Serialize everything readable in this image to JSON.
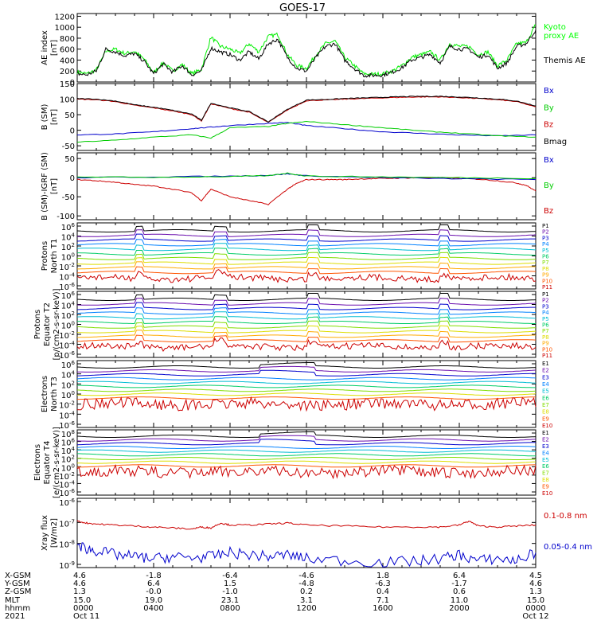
{
  "title": "GOES-17",
  "chart_data": [
    {
      "type": "line",
      "panel": "ae",
      "ylabel": [
        "AE index",
        "[nT]"
      ],
      "yticks": [
        "1200",
        "1000",
        "800",
        "600",
        "400",
        "200",
        "0"
      ],
      "ylim": [
        0,
        1250
      ],
      "legend": [
        {
          "text": "Kyoto",
          "color": "#00ff00"
        },
        {
          "text": "proxy AE",
          "color": "#00ff00"
        },
        {
          "text": "Themis AE",
          "color": "#000000"
        }
      ],
      "series": [
        {
          "name": "Kyoto proxy AE",
          "color": "#00ee00",
          "x": [
            0,
            0.5,
            1,
            1.5,
            2,
            2.5,
            3,
            3.5,
            4,
            4.5,
            5,
            5.5,
            6,
            6.5,
            7,
            7.5,
            8,
            8.5,
            9,
            9.5,
            10,
            10.5,
            11,
            11.5,
            12,
            12.5,
            13,
            13.5,
            14,
            14.5,
            15,
            15.5,
            16,
            16.5,
            17,
            17.5,
            18,
            18.5,
            19,
            19.5,
            20,
            20.5,
            21,
            21.5,
            22,
            22.5,
            23,
            23.5,
            24
          ],
          "values": [
            180,
            150,
            220,
            560,
            600,
            520,
            560,
            420,
            170,
            350,
            200,
            320,
            150,
            230,
            820,
            650,
            600,
            520,
            700,
            550,
            830,
            870,
            500,
            300,
            250,
            500,
            700,
            750,
            450,
            300,
            150,
            140,
            150,
            200,
            300,
            450,
            500,
            550,
            400,
            700,
            650,
            650,
            500,
            550,
            300,
            400,
            700,
            720,
            1050
          ]
        },
        {
          "name": "Themis AE",
          "color": "#000000",
          "x": [
            0,
            0.5,
            1,
            1.5,
            2,
            2.5,
            3,
            3.5,
            4,
            4.5,
            5,
            5.5,
            6,
            6.5,
            7,
            7.5,
            8,
            8.5,
            9,
            9.5,
            10,
            10.5,
            11,
            11.5,
            12,
            12.5,
            13,
            13.5,
            14,
            14.5,
            15,
            15.5,
            16,
            16.5,
            17,
            17.5,
            18,
            18.5,
            19,
            19.5,
            20,
            20.5,
            21,
            21.5,
            22,
            22.5,
            23,
            23.5,
            24
          ],
          "values": [
            150,
            130,
            200,
            600,
            550,
            480,
            520,
            380,
            150,
            330,
            180,
            300,
            130,
            200,
            620,
            550,
            500,
            400,
            550,
            420,
            700,
            780,
            450,
            250,
            200,
            450,
            650,
            700,
            400,
            250,
            120,
            120,
            130,
            180,
            260,
            400,
            450,
            500,
            350,
            650,
            600,
            600,
            450,
            500,
            250,
            350,
            650,
            700,
            950
          ]
        }
      ]
    },
    {
      "type": "line",
      "panel": "b",
      "ylabel": [
        "B (SM)",
        "[nT]"
      ],
      "yticks": [
        "150",
        "100",
        "50",
        "0",
        "-50"
      ],
      "ylim": [
        -65,
        150
      ],
      "legend": [
        {
          "text": "Bx",
          "color": "#0000cc"
        },
        {
          "text": "By",
          "color": "#00cc00"
        },
        {
          "text": "Bz",
          "color": "#cc0000"
        },
        {
          "text": "Bmag",
          "color": "#000000"
        }
      ],
      "series": [
        {
          "name": "Bz",
          "color": "#cc0000",
          "x": [
            0,
            1,
            2,
            3,
            4,
            5,
            6,
            6.5,
            7,
            8,
            9,
            10,
            11,
            12,
            13,
            14,
            15,
            16,
            17,
            18,
            19,
            20,
            21,
            22,
            23,
            24
          ],
          "values": [
            100,
            98,
            92,
            80,
            72,
            62,
            50,
            30,
            85,
            70,
            58,
            25,
            65,
            95,
            97,
            100,
            102,
            104,
            106,
            107,
            107,
            105,
            102,
            98,
            92,
            75
          ]
        },
        {
          "name": "Bmag",
          "color": "#000000",
          "x": [
            0,
            1,
            2,
            3,
            4,
            5,
            6,
            6.5,
            7,
            8,
            9,
            10,
            11,
            12,
            13,
            14,
            15,
            16,
            17,
            18,
            19,
            20,
            21,
            22,
            23,
            24
          ],
          "values": [
            102,
            100,
            94,
            82,
            74,
            64,
            52,
            32,
            87,
            72,
            60,
            27,
            67,
            97,
            99,
            102,
            104,
            106,
            108,
            109,
            109,
            107,
            104,
            100,
            94,
            78
          ]
        },
        {
          "name": "Bx",
          "color": "#0000cc",
          "x": [
            0,
            2,
            4,
            6,
            7,
            8,
            10,
            11,
            12,
            14,
            16,
            18,
            20,
            22,
            24
          ],
          "values": [
            -15,
            -12,
            -5,
            5,
            10,
            15,
            22,
            25,
            15,
            5,
            -5,
            -10,
            -15,
            -18,
            -15
          ]
        },
        {
          "name": "By",
          "color": "#00cc00",
          "x": [
            0,
            2,
            4,
            6,
            7,
            8,
            10,
            11,
            12,
            14,
            16,
            18,
            20,
            22,
            24
          ],
          "values": [
            -38,
            -32,
            -22,
            -15,
            -25,
            8,
            12,
            22,
            28,
            18,
            8,
            -2,
            -10,
            -18,
            -22
          ]
        }
      ]
    },
    {
      "type": "line",
      "panel": "db",
      "ylabel": [
        "B (SM)-IGRF (SM)",
        "[nT]"
      ],
      "yticks": [
        "50",
        "0",
        "-50",
        "-100"
      ],
      "ylim": [
        -110,
        65
      ],
      "legend": [
        {
          "text": "Bx",
          "color": "#0000cc"
        },
        {
          "text": "By",
          "color": "#00cc00"
        },
        {
          "text": "Bz",
          "color": "#cc0000"
        }
      ],
      "series": [
        {
          "name": "Bz",
          "color": "#cc0000",
          "x": [
            0,
            1,
            2,
            3,
            4,
            5,
            6,
            6.5,
            7,
            8,
            9,
            10,
            11,
            11.5,
            12,
            13,
            14,
            15,
            16,
            17,
            18,
            19,
            20,
            21,
            22,
            23,
            23.5,
            24
          ],
          "values": [
            -5,
            -8,
            -12,
            -18,
            -22,
            -30,
            -40,
            -60,
            -30,
            -50,
            -60,
            -70,
            -30,
            -15,
            -5,
            -5,
            -5,
            -3,
            -2,
            -1,
            0,
            0,
            -2,
            -4,
            -8,
            -14,
            -20,
            -35
          ]
        },
        {
          "name": "Bx",
          "color": "#0000cc",
          "x": [
            0,
            4,
            8,
            10,
            11,
            12,
            16,
            20,
            24
          ],
          "values": [
            0,
            2,
            4,
            6,
            10,
            5,
            0,
            -3,
            -5
          ]
        },
        {
          "name": "By",
          "color": "#00cc00",
          "x": [
            0,
            4,
            8,
            10,
            11,
            12,
            16,
            20,
            24
          ],
          "values": [
            2,
            1,
            3,
            5,
            12,
            4,
            2,
            0,
            -2
          ]
        }
      ]
    },
    {
      "type": "line",
      "panel": "protons-t1",
      "ylabel": [
        "Protons",
        "North T1"
      ],
      "ylog": true,
      "yticks": [
        {
          "b": "10",
          "e": "6"
        },
        {
          "b": "10",
          "e": "4"
        },
        {
          "b": "10",
          "e": "2"
        },
        {
          "b": "10",
          "e": "0"
        },
        {
          "b": "10",
          "e": "-2"
        },
        {
          "b": "10",
          "e": "-4"
        },
        {
          "b": "10",
          "e": "-6"
        }
      ],
      "legend": [
        {
          "text": "P1",
          "color": "#000000"
        },
        {
          "text": "P2",
          "color": "#6a0dad"
        },
        {
          "text": "P3",
          "color": "#0000cc"
        },
        {
          "text": "P4",
          "color": "#0080ff"
        },
        {
          "text": "P5",
          "color": "#00bcd4"
        },
        {
          "text": "P6",
          "color": "#00cc66"
        },
        {
          "text": "P7",
          "color": "#80dd00"
        },
        {
          "text": "P8",
          "color": "#dddd00"
        },
        {
          "text": "P9",
          "color": "#ffaa00"
        },
        {
          "text": "P10",
          "color": "#ff5500"
        },
        {
          "text": "P11",
          "color": "#cc0000"
        }
      ]
    },
    {
      "type": "line",
      "panel": "protons-t2",
      "ylabel": [
        "Protons",
        "Equator T2",
        "[p/(cm2-s-sr-keV)]"
      ],
      "ylog": true,
      "yticks": [
        {
          "b": "10",
          "e": "6"
        },
        {
          "b": "10",
          "e": "4"
        },
        {
          "b": "10",
          "e": "2"
        },
        {
          "b": "10",
          "e": "0"
        },
        {
          "b": "10",
          "e": "-2"
        },
        {
          "b": "10",
          "e": "-4"
        },
        {
          "b": "10",
          "e": "-6"
        }
      ],
      "legend": [
        {
          "text": "P1",
          "color": "#000000"
        },
        {
          "text": "P2",
          "color": "#6a0dad"
        },
        {
          "text": "P3",
          "color": "#0000cc"
        },
        {
          "text": "P4",
          "color": "#0080ff"
        },
        {
          "text": "P5",
          "color": "#00bcd4"
        },
        {
          "text": "P6",
          "color": "#00cc66"
        },
        {
          "text": "P7",
          "color": "#80dd00"
        },
        {
          "text": "P8",
          "color": "#dddd00"
        },
        {
          "text": "P9",
          "color": "#ffaa00"
        },
        {
          "text": "P10",
          "color": "#ff5500"
        },
        {
          "text": "P11",
          "color": "#cc0000"
        }
      ]
    },
    {
      "type": "line",
      "panel": "electrons-t3",
      "ylabel": [
        "Electrons",
        "North T3"
      ],
      "ylog": true,
      "yticks": [
        {
          "b": "10",
          "e": "6"
        },
        {
          "b": "10",
          "e": "4"
        },
        {
          "b": "10",
          "e": "2"
        },
        {
          "b": "10",
          "e": "0"
        },
        {
          "b": "10",
          "e": "-2"
        },
        {
          "b": "10",
          "e": "-4"
        },
        {
          "b": "10",
          "e": "-6"
        }
      ],
      "legend": [
        {
          "text": "E1",
          "color": "#000000"
        },
        {
          "text": "E2",
          "color": "#6a0dad"
        },
        {
          "text": "E3",
          "color": "#0000cc"
        },
        {
          "text": "E4",
          "color": "#0080ff"
        },
        {
          "text": "E5",
          "color": "#00bcd4"
        },
        {
          "text": "E6",
          "color": "#00cc66"
        },
        {
          "text": "E7",
          "color": "#80dd00"
        },
        {
          "text": "E8",
          "color": "#dddd00"
        },
        {
          "text": "E9",
          "color": "#ff5500"
        },
        {
          "text": "E10",
          "color": "#cc0000"
        }
      ]
    },
    {
      "type": "line",
      "panel": "electrons-t4",
      "ylabel": [
        "Electrons",
        "Equator T4",
        "[e/(cm2-s-sr-keV)]"
      ],
      "ylog": true,
      "yticks": [
        {
          "b": "10",
          "e": "8"
        },
        {
          "b": "10",
          "e": "6"
        },
        {
          "b": "10",
          "e": "4"
        },
        {
          "b": "10",
          "e": "2"
        },
        {
          "b": "10",
          "e": "0"
        },
        {
          "b": "10",
          "e": "-2"
        },
        {
          "b": "10",
          "e": "-4"
        },
        {
          "b": "10",
          "e": "-6"
        }
      ],
      "legend": [
        {
          "text": "E1",
          "color": "#000000"
        },
        {
          "text": "E2",
          "color": "#6a0dad"
        },
        {
          "text": "E3",
          "color": "#0000cc"
        },
        {
          "text": "E4",
          "color": "#0080ff"
        },
        {
          "text": "E5",
          "color": "#00bcd4"
        },
        {
          "text": "E6",
          "color": "#00cc66"
        },
        {
          "text": "E7",
          "color": "#80dd00"
        },
        {
          "text": "E8",
          "color": "#dddd00"
        },
        {
          "text": "E9",
          "color": "#ff5500"
        },
        {
          "text": "E10",
          "color": "#cc0000"
        }
      ]
    },
    {
      "type": "line",
      "panel": "xray",
      "ylabel": [
        "Xray flux",
        "[W/m2]"
      ],
      "ylog": true,
      "yticks": [
        {
          "b": "10",
          "e": "-6"
        },
        {
          "b": "10",
          "e": "-7"
        },
        {
          "b": "10",
          "e": "-8"
        },
        {
          "b": "10",
          "e": "-9"
        }
      ],
      "legend": [
        {
          "text": "0.1-0.8 nm",
          "color": "#cc0000"
        },
        {
          "text": "0.05-0.4 nm",
          "color": "#0000cc"
        }
      ],
      "series": [
        {
          "name": "0.1-0.8 nm",
          "color": "#cc0000",
          "x": [
            0,
            0.5,
            1,
            2,
            3,
            4,
            5,
            6,
            6.5,
            7,
            7.5,
            8,
            9,
            10,
            11,
            12,
            14,
            16,
            18,
            19,
            20,
            20.5,
            21,
            22,
            23,
            24
          ],
          "values": [
            -6.9,
            -7.0,
            -7.05,
            -7.1,
            -7.15,
            -7.2,
            -7.25,
            -7.3,
            -7.2,
            -7.25,
            -7.0,
            -7.1,
            -7.1,
            -7.05,
            -7.0,
            -7.1,
            -7.15,
            -7.2,
            -7.2,
            -7.2,
            -7.1,
            -6.9,
            -7.15,
            -7.2,
            -7.15,
            -7.1
          ]
        },
        {
          "name": "0.05-0.4 nm",
          "color": "#0000cc",
          "x": [
            0,
            0.5,
            1,
            2,
            3,
            4,
            5,
            6,
            7,
            8,
            9,
            10,
            11,
            12,
            14,
            16,
            18,
            19,
            20,
            21,
            22,
            23,
            24
          ],
          "values": [
            -8.1,
            -8.3,
            -8.4,
            -8.6,
            -8.7,
            -8.8,
            -8.7,
            -8.75,
            -8.7,
            -8.5,
            -8.6,
            -8.7,
            -8.6,
            -8.8,
            -8.9,
            -9.0,
            -8.9,
            -8.8,
            -8.6,
            -8.9,
            -8.8,
            -8.9,
            -8.5
          ]
        }
      ]
    }
  ],
  "ephemeris": {
    "row_labels": [
      "X-GSM",
      "Y-GSM",
      "Z-GSM",
      "MLT",
      "hhmm",
      "2021"
    ],
    "columns": [
      [
        "4.6",
        "4.6",
        "1.3",
        "15.0",
        "0000",
        "Oct 11"
      ],
      [
        "-1.8",
        "6.4",
        "-0.0",
        "19.0",
        "0400",
        ""
      ],
      [
        "-6.4",
        "1.5",
        "-1.0",
        "23.1",
        "0800",
        ""
      ],
      [
        "-4.6",
        "-4.8",
        "0.2",
        "3.1",
        "1200",
        ""
      ],
      [
        "1.8",
        "-6.3",
        "0.4",
        "7.1",
        "1600",
        ""
      ],
      [
        "6.4",
        "-1.7",
        "0.6",
        "11.0",
        "2000",
        ""
      ],
      [
        "4.5",
        "4.6",
        "1.3",
        "15.0",
        "0000",
        "Oct 12"
      ]
    ]
  }
}
